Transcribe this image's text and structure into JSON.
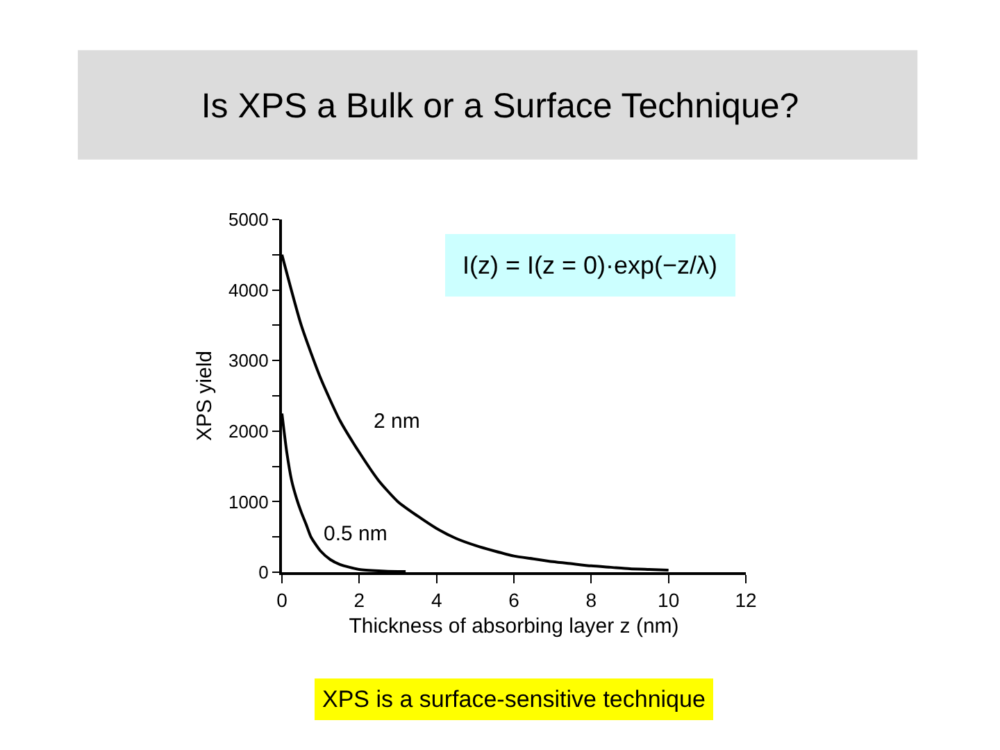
{
  "chart_data": {
    "type": "line",
    "title": "Is XPS a Bulk or a Surface Technique?",
    "xlabel": "Thickness of absorbing layer z (nm)",
    "ylabel": "XPS yield",
    "xlim": [
      0,
      12
    ],
    "xticks": [
      0,
      2,
      4,
      6,
      8,
      10,
      12
    ],
    "ylim": [
      0,
      5000
    ],
    "yticks": [
      0,
      {
        "value": 500,
        "label": null
      },
      1000,
      {
        "value": 1500,
        "label": null
      },
      2000,
      {
        "value": 2500,
        "label": null
      },
      3000,
      {
        "value": 3500,
        "label": null
      },
      4000,
      {
        "value": 4500,
        "label": null
      },
      5000
    ],
    "legend": false,
    "marker": "none",
    "line_style": "solid",
    "series": [
      {
        "name": "2 nm",
        "color": "#000000",
        "x": [
          0,
          0.5,
          1,
          1.5,
          2,
          2.5,
          3,
          3.5,
          4,
          4.5,
          5,
          5.5,
          6,
          6.5,
          7,
          7.5,
          8,
          8.5,
          9,
          9.5,
          10
        ],
        "values": [
          4500,
          3500,
          2750,
          2150,
          1700,
          1300,
          1000,
          800,
          620,
          480,
          380,
          300,
          230,
          190,
          150,
          120,
          90,
          70,
          50,
          40,
          30
        ]
      },
      {
        "name": "0.5 nm",
        "color": "#000000",
        "x": [
          0,
          0.125,
          0.25,
          0.375,
          0.5,
          0.625,
          0.75,
          1,
          1.25,
          1.5,
          1.75,
          2,
          2.5,
          3,
          3.2
        ],
        "values": [
          2250,
          1700,
          1300,
          1050,
          850,
          680,
          500,
          300,
          180,
          110,
          70,
          40,
          20,
          10,
          10
        ]
      }
    ],
    "annotations": [
      "I(z) = I(z = 0)·exp(−z/λ)",
      "XPS is a surface-sensitive technique"
    ]
  }
}
